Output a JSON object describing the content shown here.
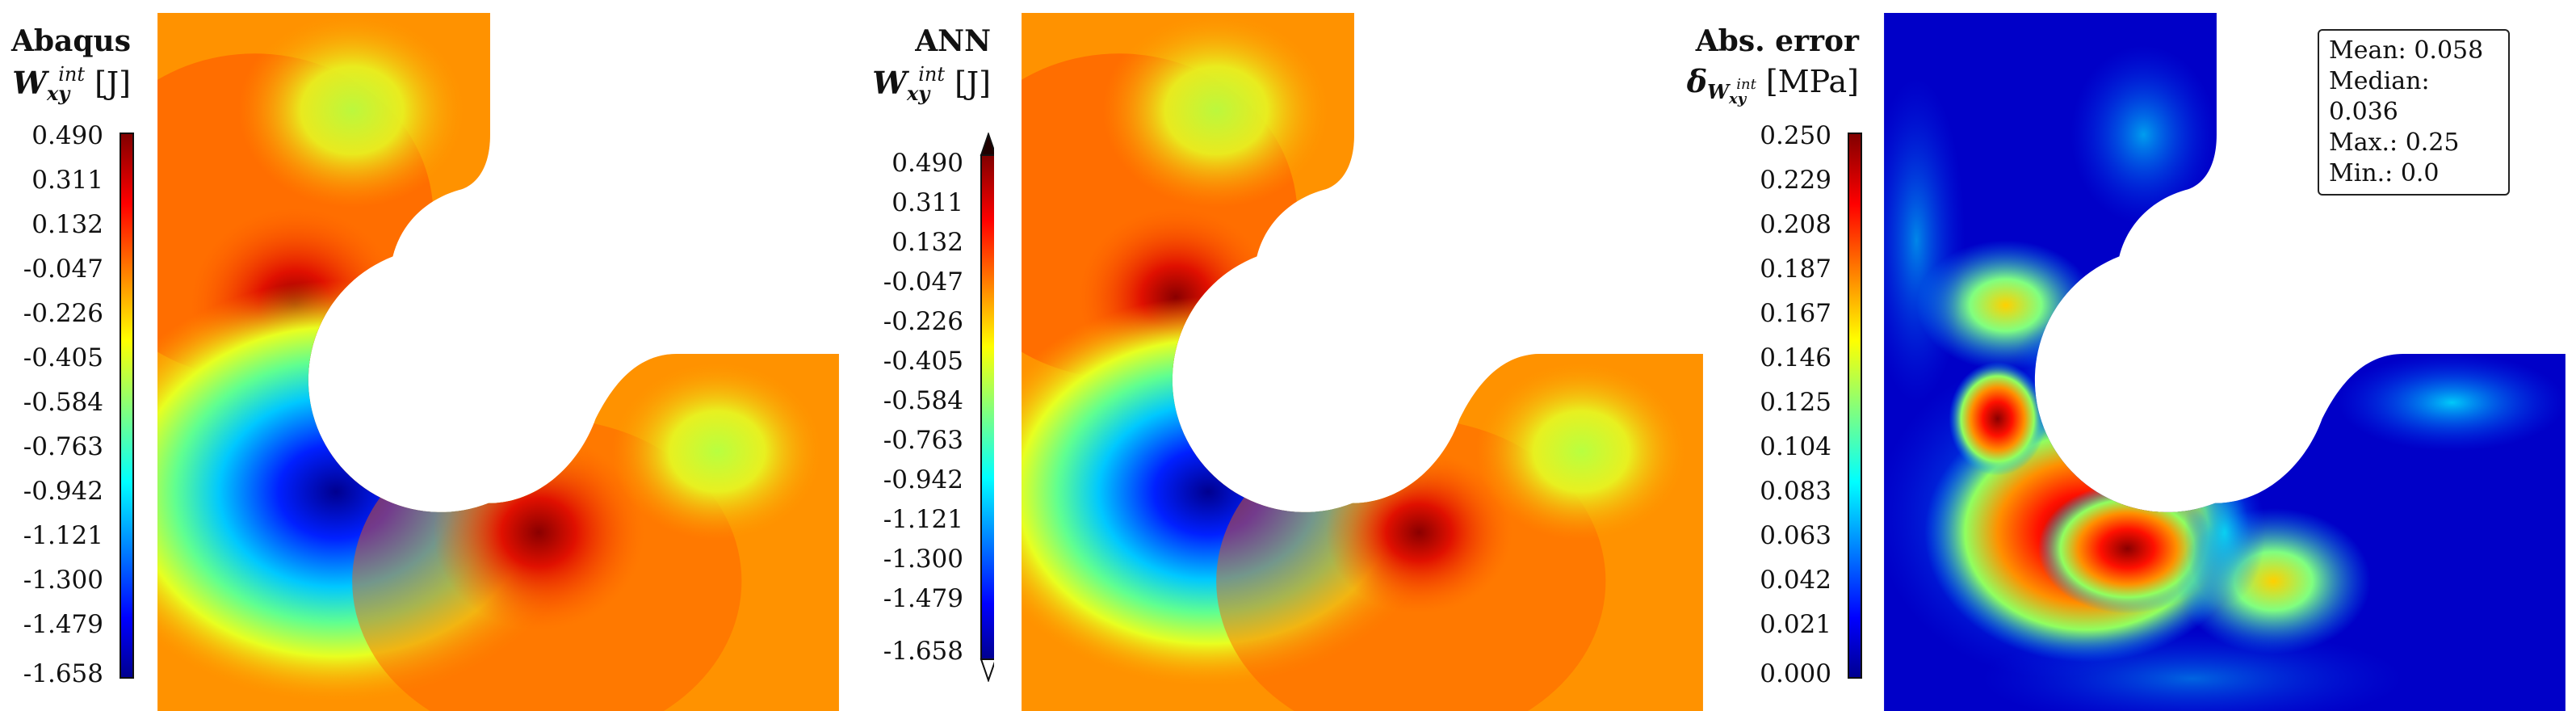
{
  "panels": [
    {
      "title": "Abaqus",
      "symbol": "W",
      "superscript": "int",
      "subscript": "xy",
      "unit": "[J]",
      "ticks": [
        "0.490",
        "0.311",
        "0.132",
        "-0.047",
        "-0.226",
        "-0.405",
        "-0.584",
        "-0.763",
        "-0.942",
        "-1.121",
        "-1.300",
        "-1.479",
        "-1.658"
      ],
      "colormap": "jet"
    },
    {
      "title": "ANN",
      "symbol": "W",
      "superscript": "int",
      "subscript": "xy",
      "unit": "[J]",
      "ticks": [
        "0.490",
        "0.311",
        "0.132",
        "-0.047",
        "-0.226",
        "-0.405",
        "-0.584",
        "-0.763",
        "-0.942",
        "-1.121",
        "-1.300",
        "-1.479",
        "-1.658"
      ],
      "colormap": "jet",
      "extend": "both"
    },
    {
      "title": "Abs. error",
      "symbol": "δ",
      "subscript_symbol": "W",
      "superscript": "int",
      "subscript": "xy",
      "unit": "[MPa]",
      "ticks": [
        "0.250",
        "0.229",
        "0.208",
        "0.187",
        "0.167",
        "0.146",
        "0.125",
        "0.104",
        "0.083",
        "0.063",
        "0.042",
        "0.021",
        "0.000"
      ],
      "colormap": "jet",
      "stats": {
        "mean": "Mean: 0.058",
        "median": "Median: 0.036",
        "max": "Max.: 0.25",
        "min": "Min.: 0.0"
      }
    }
  ]
}
